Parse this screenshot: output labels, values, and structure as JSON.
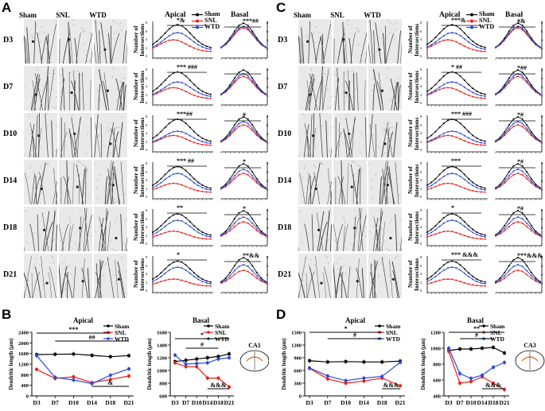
{
  "panel_letters": [
    "A",
    "C",
    "B",
    "D"
  ],
  "column_headers": {
    "sham": "Sham",
    "snl": "SNL",
    "wtd": "WTD"
  },
  "row_labels": [
    "D3",
    "D7",
    "D10",
    "D14",
    "D18",
    "D21"
  ],
  "sholl_titles": {
    "apical": "Apical",
    "basal": "Basal"
  },
  "legend": {
    "sham": "Sham",
    "snl": "SNL",
    "wtd": "WTD"
  },
  "series_colors": {
    "sham": "#000000",
    "snl": "#e8211c",
    "wtd": "#2b4bd9"
  },
  "sholl_ylabel": "Number of Intersections",
  "sholl_left_axis_ticks": [
    "8",
    "6",
    "4",
    "2",
    "0"
  ],
  "sholl_right_axis_ticks": [
    "8",
    "6",
    "4",
    "2"
  ],
  "markers": {
    "A": [
      [
        "*&",
        "***##"
      ],
      [
        "*** ###",
        ""
      ],
      [
        "***##",
        "#"
      ],
      [
        "*** ##",
        "*"
      ],
      [
        "**",
        "*"
      ],
      [
        "*",
        "**&&"
      ]
    ],
    "C": [
      [
        "***&",
        "#&"
      ],
      [
        "* ##",
        "*##"
      ],
      [
        "*** ###",
        "*#"
      ],
      [
        "***",
        "*#"
      ],
      [
        "*",
        "*#"
      ],
      [
        "*** &&&",
        "***&&&"
      ]
    ]
  },
  "chart_data": [
    {
      "type": "line",
      "panel": "B",
      "title": "Apical",
      "ylabel": "Dendritic length (μm)",
      "categories": [
        "D3",
        "D7",
        "D10",
        "D14",
        "D18",
        "D21"
      ],
      "ylim": [
        0,
        2400
      ],
      "yticks": [
        0,
        400,
        800,
        1200,
        1600,
        2000,
        2400
      ],
      "series": [
        {
          "name": "Sham",
          "values": [
            1560,
            1570,
            1580,
            1530,
            1480,
            1520
          ]
        },
        {
          "name": "SNL",
          "values": [
            1000,
            660,
            720,
            500,
            620,
            750
          ]
        },
        {
          "name": "WTD",
          "values": [
            1520,
            700,
            600,
            460,
            780,
            1020
          ]
        }
      ],
      "annotations": [
        "***",
        "##",
        "&"
      ],
      "inset_label": ""
    },
    {
      "type": "line",
      "panel": "B",
      "title": "Basal",
      "ylabel": "Dendritic length (μm)",
      "categories": [
        "D3",
        "D7",
        "D10",
        "D14",
        "D18",
        "D21"
      ],
      "ylim": [
        600,
        1600
      ],
      "yticks": [
        600,
        800,
        1000,
        1200,
        1400,
        1600
      ],
      "series": [
        {
          "name": "Sham",
          "values": [
            1140,
            1160,
            1180,
            1200,
            1220,
            1260
          ]
        },
        {
          "name": "SNL",
          "values": [
            1120,
            1060,
            1060,
            880,
            880,
            740
          ]
        },
        {
          "name": "WTD",
          "values": [
            1240,
            1100,
            1110,
            1120,
            1180,
            1200
          ]
        }
      ],
      "annotations": [
        "*",
        "#",
        "&&&"
      ],
      "inset_label": "CA1"
    },
    {
      "type": "line",
      "panel": "D",
      "title": "Apical",
      "ylabel": "Dendritic length (μm)",
      "categories": [
        "D3",
        "D7",
        "D10",
        "D14",
        "D18",
        "D21"
      ],
      "ylim": [
        0,
        1500
      ],
      "yticks": [
        0,
        300,
        600,
        900,
        1200,
        1500
      ],
      "series": [
        {
          "name": "Sham",
          "values": [
            830,
            800,
            810,
            800,
            800,
            820
          ]
        },
        {
          "name": "SNL",
          "values": [
            650,
            400,
            300,
            350,
            420,
            240
          ]
        },
        {
          "name": "WTD",
          "values": [
            660,
            470,
            360,
            420,
            460,
            790
          ]
        }
      ],
      "annotations": [
        "*",
        "#",
        "&&&"
      ],
      "inset_label": ""
    },
    {
      "type": "line",
      "panel": "D",
      "title": "Basal",
      "ylabel": "Dendritic length (μm)",
      "categories": [
        "D3",
        "D7",
        "D10",
        "D14",
        "D18",
        "D21"
      ],
      "ylim": [
        400,
        1200
      ],
      "yticks": [
        400,
        600,
        800,
        1000,
        1200
      ],
      "series": [
        {
          "name": "Sham",
          "values": [
            970,
            990,
            990,
            1000,
            1010,
            940
          ]
        },
        {
          "name": "SNL",
          "values": [
            960,
            560,
            580,
            640,
            560,
            480
          ]
        },
        {
          "name": "WTD",
          "values": [
            1000,
            680,
            620,
            660,
            760,
            820
          ]
        }
      ],
      "annotations": [
        "**",
        "#",
        "&&&"
      ],
      "inset_label": "CA3"
    }
  ]
}
